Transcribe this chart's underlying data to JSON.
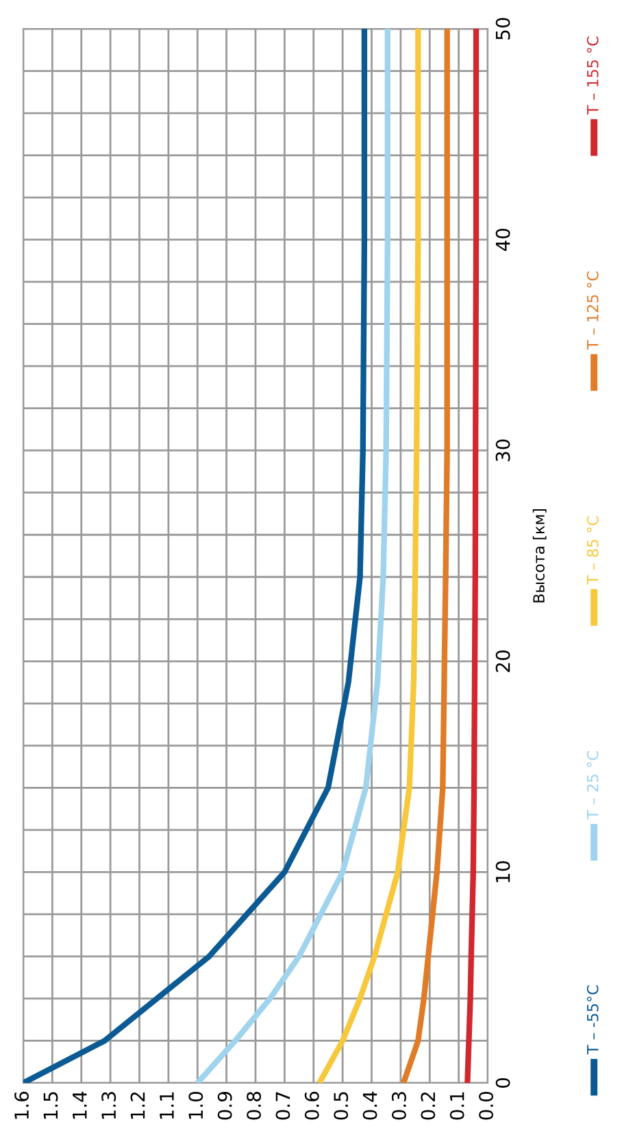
{
  "chart_data": {
    "type": "line",
    "ylabel": "Высота [км]",
    "xlim": [
      1.6,
      0
    ],
    "xticks": [
      1.6,
      1.5,
      1.4,
      1.3,
      1.2,
      1.1,
      {
        "value": 1.0,
        "label": "1.0"
      },
      0.9,
      0.8,
      0.7,
      0.6,
      0.5,
      0.4,
      0.3,
      0.2,
      0.1,
      {
        "value": 0,
        "label": "0.0"
      }
    ],
    "ylim": [
      0,
      50
    ],
    "yticks": [
      0,
      {
        "value": 2,
        "label": null
      },
      {
        "value": 4,
        "label": null
      },
      {
        "value": 6,
        "label": null
      },
      {
        "value": 8,
        "label": null
      },
      10,
      {
        "value": 12,
        "label": null
      },
      {
        "value": 14,
        "label": null
      },
      {
        "value": 16,
        "label": null
      },
      {
        "value": 18,
        "label": null
      },
      20,
      {
        "value": 22,
        "label": null
      },
      {
        "value": 24,
        "label": null
      },
      {
        "value": 26,
        "label": null
      },
      {
        "value": 28,
        "label": null
      },
      30,
      {
        "value": 32,
        "label": null
      },
      {
        "value": 34,
        "label": null
      },
      {
        "value": 36,
        "label": null
      },
      {
        "value": 38,
        "label": null
      },
      40,
      {
        "value": 42,
        "label": null
      },
      {
        "value": 44,
        "label": null
      },
      {
        "value": 46,
        "label": null
      },
      {
        "value": 48,
        "label": null
      },
      50
    ],
    "grid": true,
    "legend": "right",
    "line_style": "solid",
    "marker": "none",
    "series": [
      {
        "name": "T – -55°C",
        "color": "#0b5a94",
        "x": [
          1.6,
          1.32,
          1.14,
          0.96,
          0.7,
          0.55,
          0.48,
          0.44,
          0.43,
          0.425,
          0.425
        ],
        "values": [
          0,
          2,
          4,
          6,
          10,
          14,
          19,
          24,
          30,
          40,
          50
        ]
      },
      {
        "name": "T – 25 °C",
        "color": "#9fd3ee",
        "x": [
          1.0,
          0.87,
          0.75,
          0.65,
          0.5,
          0.42,
          0.38,
          0.36,
          0.35,
          0.345,
          0.345
        ],
        "values": [
          0,
          2,
          4,
          6,
          10,
          14,
          19,
          24,
          30,
          40,
          50
        ]
      },
      {
        "name": "T – 85 °C",
        "color": "#f7c83c",
        "x": [
          0.58,
          0.5,
          0.44,
          0.39,
          0.31,
          0.27,
          0.255,
          0.25,
          0.245,
          0.24,
          0.24
        ],
        "values": [
          0,
          2,
          4,
          6,
          10,
          14,
          19,
          24,
          30,
          40,
          50
        ]
      },
      {
        "name": "T – 125 °C",
        "color": "#e07b28",
        "x": [
          0.29,
          0.24,
          0.22,
          0.205,
          0.175,
          0.155,
          0.15,
          0.145,
          0.14,
          0.14,
          0.14
        ],
        "values": [
          0,
          2,
          4,
          6,
          10,
          14,
          19,
          24,
          30,
          40,
          50
        ]
      },
      {
        "name": "T – 155 °C",
        "color": "#d0282e",
        "x": [
          0.07,
          0.065,
          0.06,
          0.057,
          0.05,
          0.047,
          0.045,
          0.043,
          0.042,
          0.04,
          0.04
        ],
        "values": [
          0,
          2,
          4,
          6,
          10,
          14,
          19,
          24,
          30,
          40,
          50
        ]
      }
    ]
  }
}
